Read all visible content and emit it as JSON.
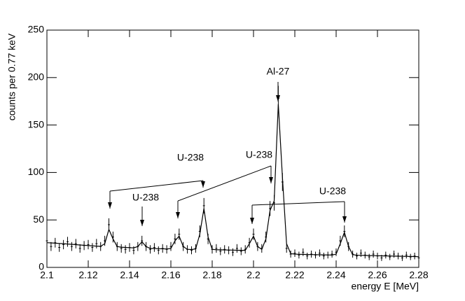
{
  "chart_data": {
    "type": "errorbar",
    "xlabel": "energy E [MeV]",
    "ylabel": "counts per 0.77 keV",
    "xlim": [
      2.1,
      2.28
    ],
    "xticks": [
      2.1,
      2.12,
      2.14,
      2.16,
      2.18,
      2.2,
      2.22,
      2.24,
      2.26,
      2.28
    ],
    "ylim": [
      0,
      250
    ],
    "yticks": [
      0,
      50,
      100,
      150,
      200,
      250
    ],
    "color": "#000000",
    "x": [
      2.1,
      2.102,
      2.104,
      2.106,
      2.108,
      2.11,
      2.112,
      2.114,
      2.116,
      2.118,
      2.12,
      2.122,
      2.124,
      2.126,
      2.128,
      2.13,
      2.132,
      2.134,
      2.136,
      2.138,
      2.14,
      2.142,
      2.144,
      2.146,
      2.148,
      2.15,
      2.152,
      2.154,
      2.156,
      2.158,
      2.16,
      2.162,
      2.164,
      2.166,
      2.168,
      2.17,
      2.172,
      2.174,
      2.176,
      2.178,
      2.18,
      2.182,
      2.184,
      2.186,
      2.188,
      2.19,
      2.192,
      2.194,
      2.196,
      2.198,
      2.2,
      2.202,
      2.204,
      2.206,
      2.208,
      2.21,
      2.212,
      2.214,
      2.216,
      2.218,
      2.22,
      2.222,
      2.224,
      2.226,
      2.228,
      2.23,
      2.232,
      2.234,
      2.236,
      2.238,
      2.24,
      2.242,
      2.244,
      2.246,
      2.248,
      2.25,
      2.252,
      2.254,
      2.256,
      2.258,
      2.26,
      2.262,
      2.264,
      2.266,
      2.268,
      2.27,
      2.272,
      2.274,
      2.276,
      2.278,
      2.28
    ],
    "values": [
      28,
      22,
      26,
      21,
      24,
      27,
      22,
      25,
      20,
      23,
      24,
      21,
      25,
      22,
      28,
      45,
      32,
      22,
      20,
      19,
      21,
      18,
      22,
      28,
      22,
      19,
      21,
      18,
      20,
      19,
      22,
      30,
      35,
      22,
      19,
      18,
      20,
      38,
      65,
      30,
      19,
      20,
      17,
      19,
      18,
      16,
      20,
      17,
      19,
      26,
      35,
      22,
      20,
      32,
      62,
      68,
      178,
      90,
      20,
      14,
      15,
      13,
      16,
      12,
      14,
      13,
      15,
      12,
      13,
      14,
      16,
      28,
      38,
      22,
      14,
      12,
      15,
      13,
      11,
      14,
      12,
      10,
      13,
      11,
      14,
      12,
      10,
      13,
      11,
      12,
      10
    ],
    "errors": [
      5.3,
      4.7,
      5.1,
      4.6,
      4.9,
      5.2,
      4.7,
      5,
      4.5,
      4.8,
      4.9,
      4.6,
      5,
      4.7,
      5.3,
      6.7,
      5.7,
      4.7,
      4.5,
      4.4,
      4.6,
      4.2,
      4.7,
      5.3,
      4.7,
      4.4,
      4.6,
      4.2,
      4.5,
      4.4,
      4.7,
      5.5,
      5.9,
      4.7,
      4.4,
      4.2,
      4.5,
      6.2,
      8.1,
      5.5,
      4.4,
      4.5,
      4.1,
      4.4,
      4.2,
      4,
      4.5,
      4.1,
      4.4,
      5.1,
      5.9,
      4.7,
      4.5,
      5.7,
      7.9,
      8.2,
      13.3,
      9.5,
      4.5,
      3.7,
      3.9,
      3.6,
      4,
      3.5,
      3.7,
      3.6,
      3.9,
      3.5,
      3.6,
      3.7,
      4,
      5.3,
      6.2,
      4.7,
      3.7,
      3.5,
      3.9,
      3.6,
      3.3,
      3.7,
      3.5,
      3.2,
      3.6,
      3.3,
      3.7,
      3.5,
      3.2,
      3.6,
      3.3,
      3.5,
      3.2
    ],
    "fit_values": [
      26,
      25.8,
      25.5,
      25.2,
      25,
      24.6,
      24.3,
      24,
      23.6,
      23.3,
      23,
      22.7,
      22.4,
      22.2,
      25,
      40,
      30,
      22,
      21.3,
      21,
      20.8,
      20.6,
      22,
      27,
      22,
      20,
      19.9,
      19.7,
      19.6,
      19.4,
      20,
      28,
      33,
      22,
      19,
      18.8,
      19.5,
      35,
      62,
      32,
      19,
      18.6,
      18.5,
      18.4,
      18.3,
      18.2,
      18.1,
      18,
      18,
      25,
      33,
      22,
      19,
      30,
      60,
      70,
      172,
      95,
      25,
      14.5,
      14,
      13.8,
      13.7,
      13.6,
      13.5,
      13.4,
      13.3,
      13.2,
      13.1,
      13.0,
      14,
      25,
      37,
      22,
      13.5,
      12.8,
      12.7,
      12.6,
      12.5,
      12.4,
      12.3,
      12.2,
      12.1,
      12,
      11.9,
      11.8,
      11.7,
      11.6,
      11.5,
      11.4,
      11.3
    ],
    "annotations": [
      {
        "text": "Al-27"
      },
      {
        "text": "U-238"
      },
      {
        "text": "U-238"
      },
      {
        "text": "U-238"
      },
      {
        "text": "U-238"
      }
    ]
  }
}
